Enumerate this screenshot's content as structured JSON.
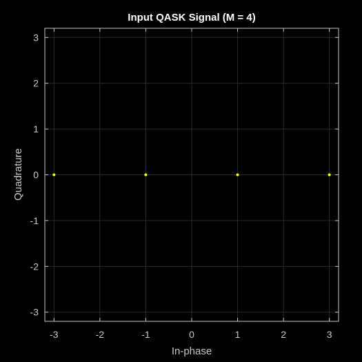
{
  "chart_data": {
    "type": "scatter",
    "title": "Input QASK Signal (M = 4)",
    "xlabel": "In-phase",
    "ylabel": "Quadrature",
    "xlim": [
      -3.2,
      3.2
    ],
    "ylim": [
      -3.2,
      3.2
    ],
    "xticks": [
      "-3",
      "-2",
      "-1",
      "0",
      "1",
      "2",
      "3"
    ],
    "yticks": [
      "3",
      "2",
      "1",
      "0",
      "-1",
      "-2",
      "-3"
    ],
    "grid": true,
    "points": [
      {
        "x": -3,
        "y": 0
      },
      {
        "x": -1,
        "y": 0
      },
      {
        "x": 1,
        "y": 0
      },
      {
        "x": 3,
        "y": 0
      }
    ],
    "colors": {
      "background": "#000000",
      "axes": "#c8c8c8",
      "grid": "#2a2a2a",
      "marker": "#ffff00",
      "title": "#ffffff"
    }
  }
}
